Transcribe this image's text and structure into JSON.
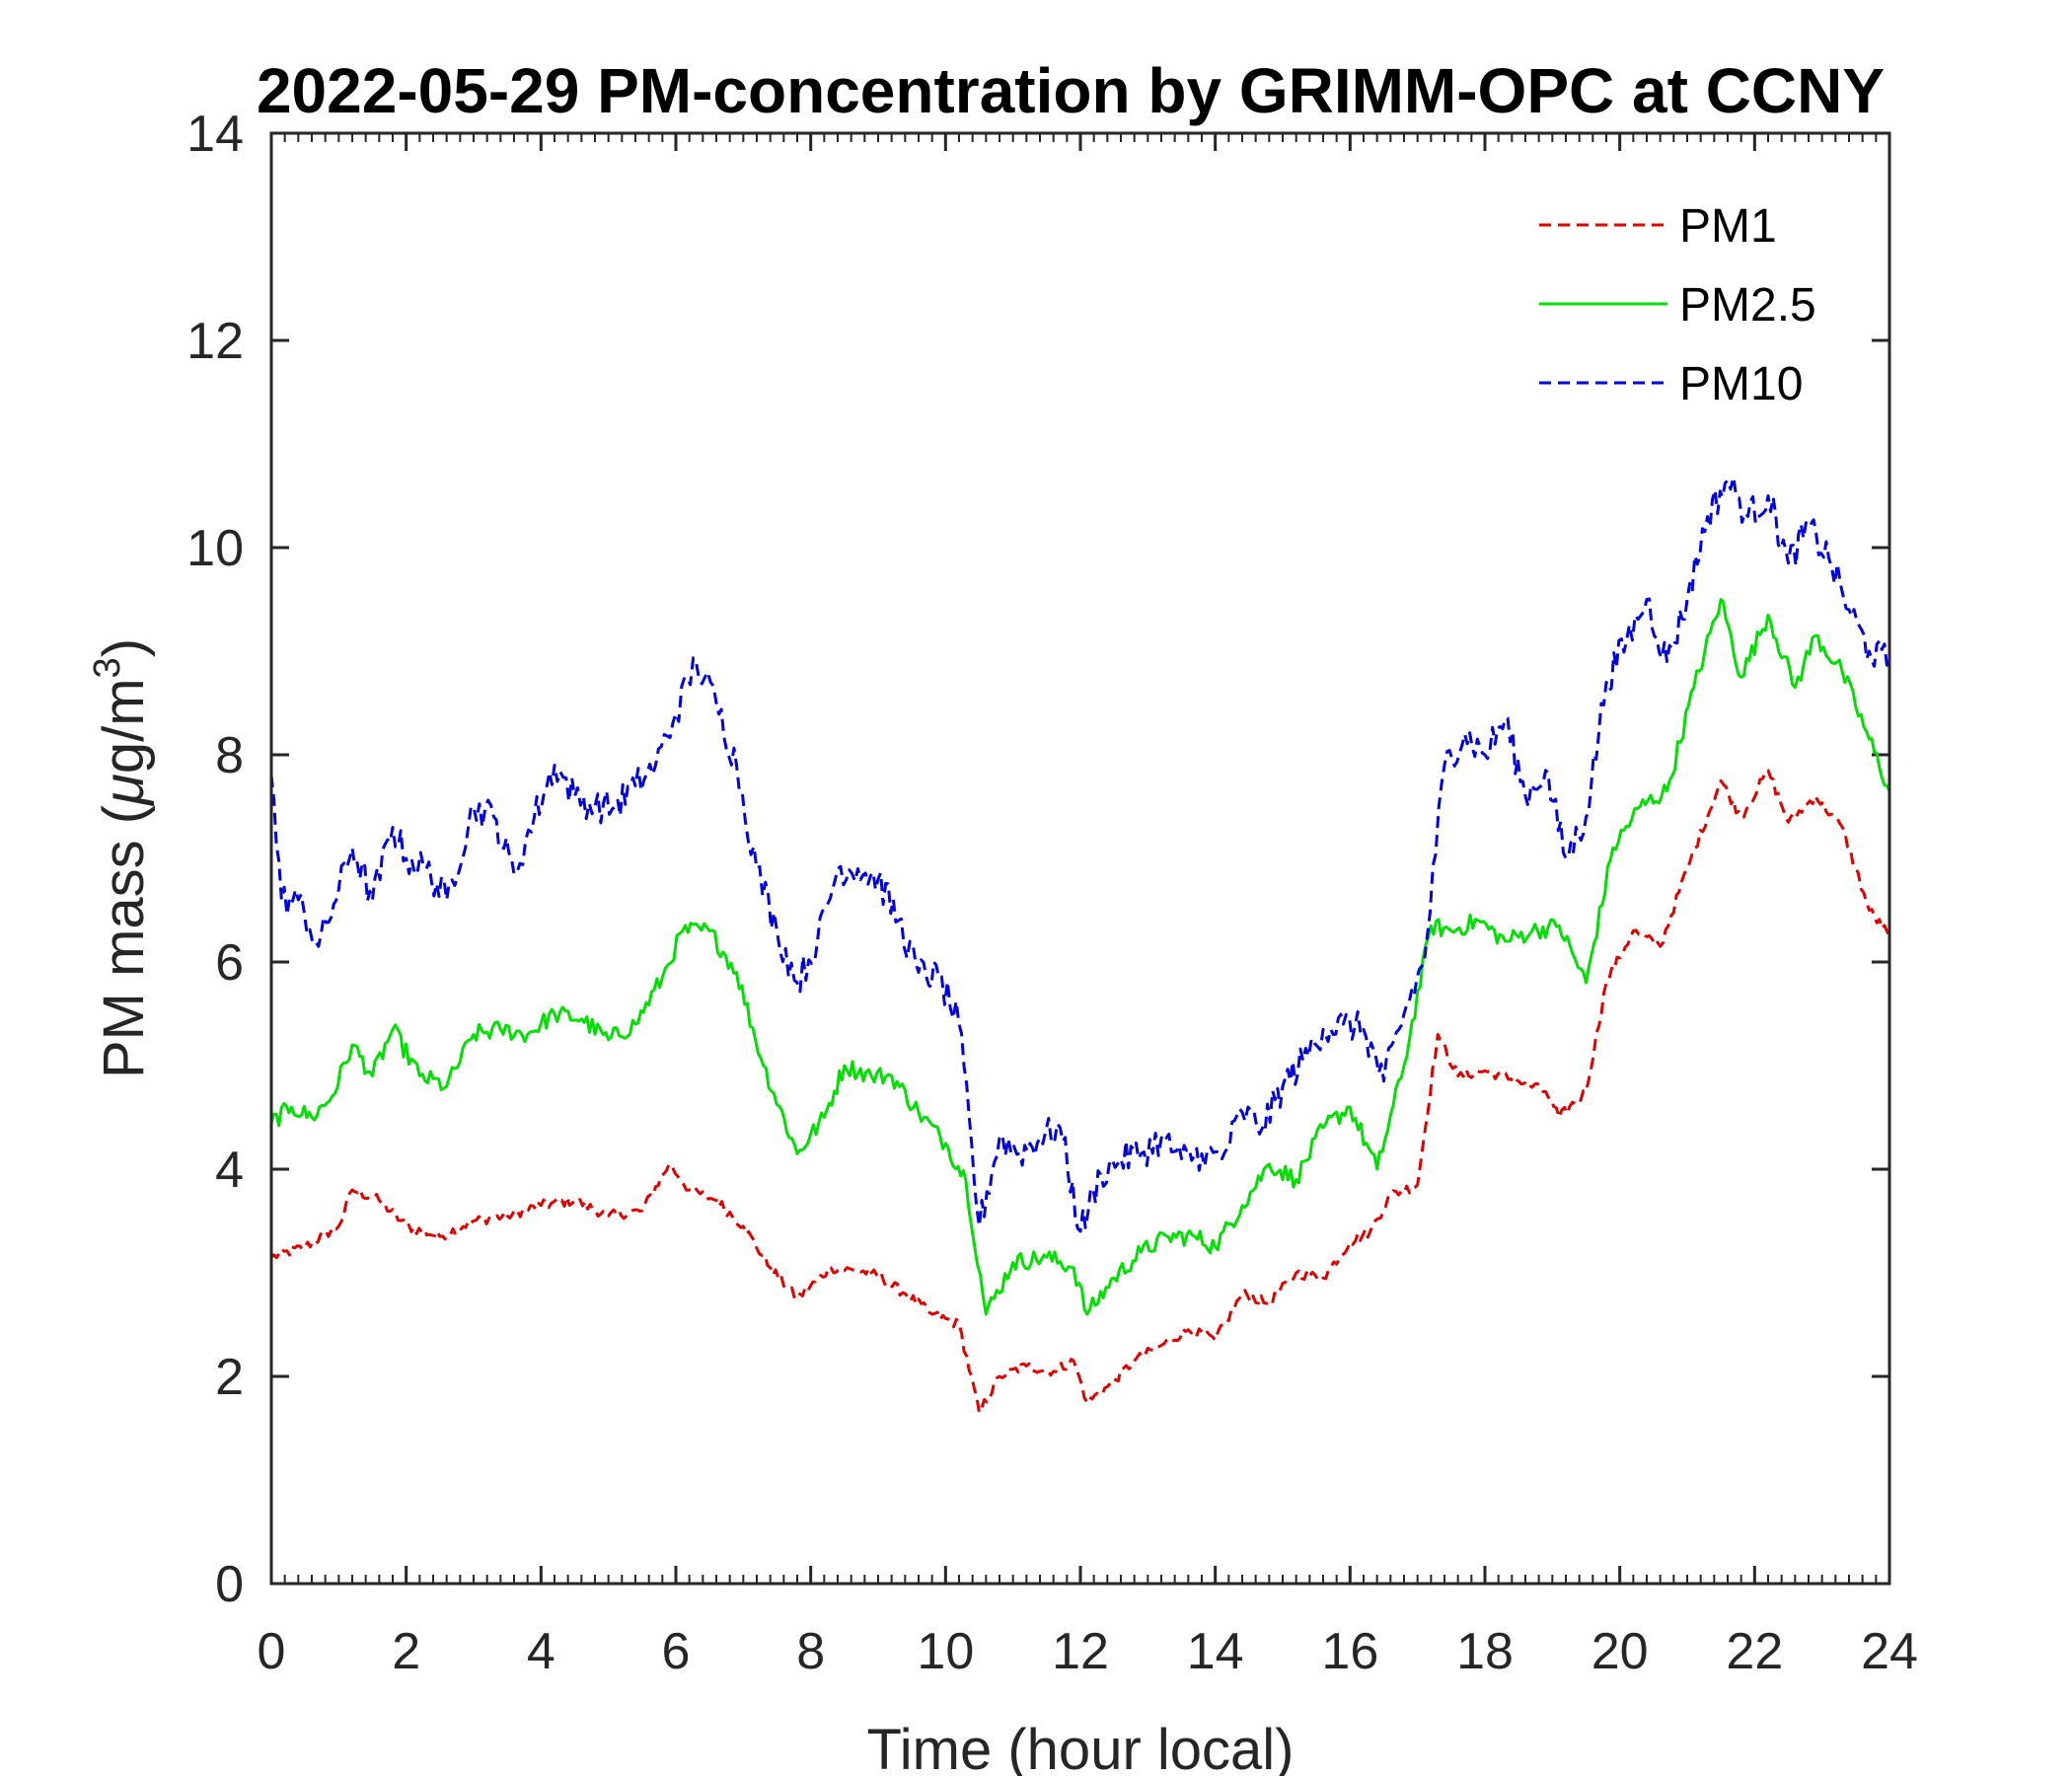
{
  "chart_data": {
    "type": "line",
    "title": "2022-05-29 PM-concentration by GRIMM-OPC at CCNY",
    "xlabel": "Time (hour local)",
    "ylabel_prefix": "PM mass (",
    "ylabel_mu": "μ",
    "ylabel_unit": "g/m",
    "ylabel_sup": "3",
    "ylabel_suffix": ")",
    "xlim": [
      0,
      24
    ],
    "ylim": [
      0,
      14
    ],
    "xticks": [
      0,
      2,
      4,
      6,
      8,
      10,
      12,
      14,
      16,
      18,
      20,
      22,
      24
    ],
    "yticks": [
      0,
      2,
      4,
      6,
      8,
      10,
      12,
      14
    ],
    "legend_position": "top-right",
    "series": [
      {
        "name": "PM1",
        "color": "#e00000",
        "style": "dashed",
        "x": [
          0,
          0.5,
          1,
          1.2,
          1.6,
          2,
          2.5,
          3,
          3.5,
          4,
          4.5,
          5,
          5.5,
          5.9,
          6.2,
          6.6,
          7,
          7.4,
          7.8,
          8.3,
          8.9,
          9.4,
          9.8,
          10.2,
          10.5,
          10.8,
          11.2,
          11.6,
          11.9,
          12.1,
          12.4,
          12.8,
          13.2,
          13.6,
          14,
          14.4,
          14.8,
          15.2,
          15.6,
          16,
          16.3,
          16.6,
          17,
          17.3,
          17.6,
          18,
          18.5,
          18.9,
          19.1,
          19.5,
          19.8,
          20.2,
          20.6,
          21,
          21.5,
          21.8,
          22.2,
          22.5,
          22.9,
          23.3,
          23.7,
          24
        ],
        "y": [
          3.15,
          3.25,
          3.45,
          3.8,
          3.7,
          3.45,
          3.35,
          3.5,
          3.55,
          3.65,
          3.7,
          3.55,
          3.6,
          4.05,
          3.8,
          3.7,
          3.45,
          3.05,
          2.75,
          3.05,
          3.0,
          2.8,
          2.6,
          2.5,
          1.65,
          2.0,
          2.1,
          2.05,
          2.15,
          1.75,
          1.9,
          2.15,
          2.3,
          2.45,
          2.35,
          2.8,
          2.7,
          3.0,
          2.95,
          3.3,
          3.4,
          3.75,
          3.85,
          5.3,
          4.9,
          4.95,
          4.85,
          4.75,
          4.5,
          4.75,
          5.8,
          6.3,
          6.15,
          6.9,
          7.75,
          7.4,
          7.85,
          7.35,
          7.6,
          7.3,
          6.5,
          6.25
        ]
      },
      {
        "name": "PM2.5",
        "color": "#00e000",
        "style": "solid",
        "x": [
          0,
          0.3,
          0.6,
          0.9,
          1.2,
          1.5,
          1.8,
          2.2,
          2.6,
          3,
          3.4,
          3.8,
          4.2,
          4.6,
          5,
          5.4,
          5.8,
          6.1,
          6.5,
          6.9,
          7.3,
          7.8,
          8.2,
          8.5,
          8.9,
          9.2,
          9.6,
          10,
          10.3,
          10.6,
          11,
          11.5,
          11.9,
          12.1,
          12.5,
          12.9,
          13.3,
          13.7,
          14,
          14.4,
          14.8,
          15.2,
          15.6,
          16,
          16.4,
          16.8,
          17.2,
          17.5,
          17.9,
          18.3,
          18.7,
          19.1,
          19.5,
          19.9,
          20.3,
          20.7,
          21.1,
          21.5,
          21.8,
          22.2,
          22.6,
          22.9,
          23.3,
          23.7,
          24
        ],
        "y": [
          4.45,
          4.6,
          4.5,
          4.7,
          5.2,
          4.9,
          5.35,
          4.9,
          4.8,
          5.3,
          5.35,
          5.3,
          5.5,
          5.45,
          5.25,
          5.4,
          5.85,
          6.3,
          6.3,
          5.9,
          5.0,
          4.15,
          4.5,
          5.0,
          4.9,
          4.9,
          4.55,
          4.25,
          3.9,
          2.6,
          3.1,
          3.15,
          3.05,
          2.6,
          2.95,
          3.2,
          3.35,
          3.35,
          3.25,
          3.65,
          4.05,
          3.9,
          4.4,
          4.6,
          4.0,
          5.0,
          6.35,
          6.3,
          6.4,
          6.2,
          6.3,
          6.35,
          5.8,
          7.1,
          7.5,
          7.65,
          8.65,
          9.5,
          8.75,
          9.35,
          8.65,
          9.15,
          8.8,
          8.15,
          7.65
        ]
      },
      {
        "name": "PM10",
        "color": "#0000e0",
        "style": "dashed",
        "x": [
          0,
          0.15,
          0.4,
          0.7,
          1,
          1.2,
          1.5,
          1.8,
          2,
          2.3,
          2.6,
          3,
          3.3,
          3.6,
          3.9,
          4.2,
          4.5,
          4.8,
          5.1,
          5.4,
          5.7,
          6,
          6.3,
          6.6,
          6.9,
          7.2,
          7.5,
          7.8,
          8.1,
          8.4,
          8.7,
          9,
          9.3,
          9.6,
          9.9,
          10.2,
          10.5,
          10.8,
          11.1,
          11.4,
          11.7,
          12,
          12.3,
          12.6,
          12.9,
          13.2,
          13.5,
          13.8,
          14.1,
          14.4,
          14.7,
          15,
          15.3,
          15.6,
          15.9,
          16.2,
          16.5,
          16.8,
          17.1,
          17.4,
          17.7,
          18,
          18.3,
          18.6,
          18.9,
          19.2,
          19.5,
          19.8,
          20.1,
          20.4,
          20.7,
          21,
          21.3,
          21.6,
          21.9,
          22.2,
          22.5,
          22.8,
          23.1,
          23.4,
          23.7,
          24
        ],
        "y": [
          7.8,
          6.6,
          6.6,
          6.15,
          6.7,
          7.1,
          6.6,
          7.3,
          7.0,
          6.9,
          6.6,
          7.5,
          7.4,
          6.85,
          7.4,
          7.9,
          7.6,
          7.5,
          7.5,
          7.7,
          7.9,
          8.4,
          8.9,
          8.5,
          7.9,
          6.9,
          6.3,
          5.8,
          6.2,
          6.9,
          6.9,
          6.8,
          6.4,
          5.9,
          5.85,
          5.4,
          3.45,
          4.3,
          4.15,
          4.3,
          4.4,
          3.4,
          3.95,
          4.1,
          4.15,
          4.3,
          4.1,
          4.15,
          4.1,
          4.55,
          4.4,
          4.8,
          5.05,
          5.35,
          5.4,
          5.35,
          4.85,
          5.5,
          6.0,
          7.9,
          8.2,
          8.0,
          8.35,
          7.6,
          7.85,
          7.0,
          7.4,
          8.7,
          9.1,
          9.5,
          8.9,
          9.5,
          10.3,
          10.65,
          10.3,
          10.5,
          9.85,
          10.2,
          9.9,
          9.4,
          9.0,
          8.9
        ]
      }
    ]
  }
}
